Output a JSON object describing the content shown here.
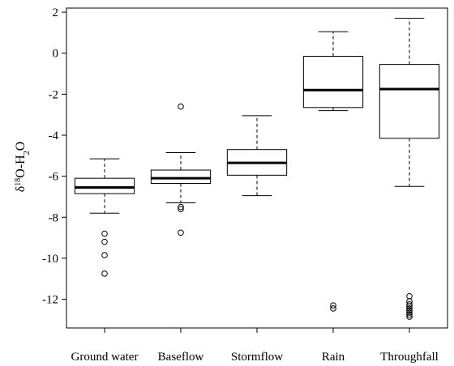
{
  "chart_data": {
    "type": "box",
    "ylabel": {
      "prefix": "δ",
      "sup": "18",
      "mid": "O-H",
      "sub": "2",
      "suffix": "O"
    },
    "ylim": [
      -13.4,
      2.2
    ],
    "yticks": [
      2,
      0,
      -2,
      -4,
      -6,
      -8,
      -10,
      -12
    ],
    "grid": false,
    "categories": [
      "Ground water",
      "Baseflow",
      "Stormflow",
      "Rain",
      "Throughfall"
    ],
    "boxes": [
      {
        "name": "Ground water",
        "whisker_low": -7.8,
        "q1": -6.85,
        "median": -6.55,
        "q3": -6.1,
        "whisker_high": -5.15,
        "outliers": [
          -8.8,
          -9.2,
          -9.85,
          -10.75
        ]
      },
      {
        "name": "Baseflow",
        "whisker_low": -7.3,
        "q1": -6.35,
        "median": -6.1,
        "q3": -5.7,
        "whisker_high": -4.85,
        "outliers": [
          -2.6,
          -7.5,
          -7.6,
          -8.75
        ]
      },
      {
        "name": "Stormflow",
        "whisker_low": -6.95,
        "q1": -5.95,
        "median": -5.35,
        "q3": -4.7,
        "whisker_high": -3.05,
        "outliers": []
      },
      {
        "name": "Rain",
        "whisker_low": -2.8,
        "q1": -2.65,
        "median": -1.8,
        "q3": -0.15,
        "whisker_high": 1.05,
        "outliers": [
          -12.3,
          -12.45
        ]
      },
      {
        "name": "Throughfall",
        "whisker_low": -6.5,
        "q1": -4.15,
        "median": -1.75,
        "q3": -0.55,
        "whisker_high": 1.7,
        "outliers": [
          -11.85,
          -12.1,
          -12.25,
          -12.35,
          -12.45,
          -12.55,
          -12.65,
          -12.75,
          -12.85
        ]
      }
    ]
  }
}
